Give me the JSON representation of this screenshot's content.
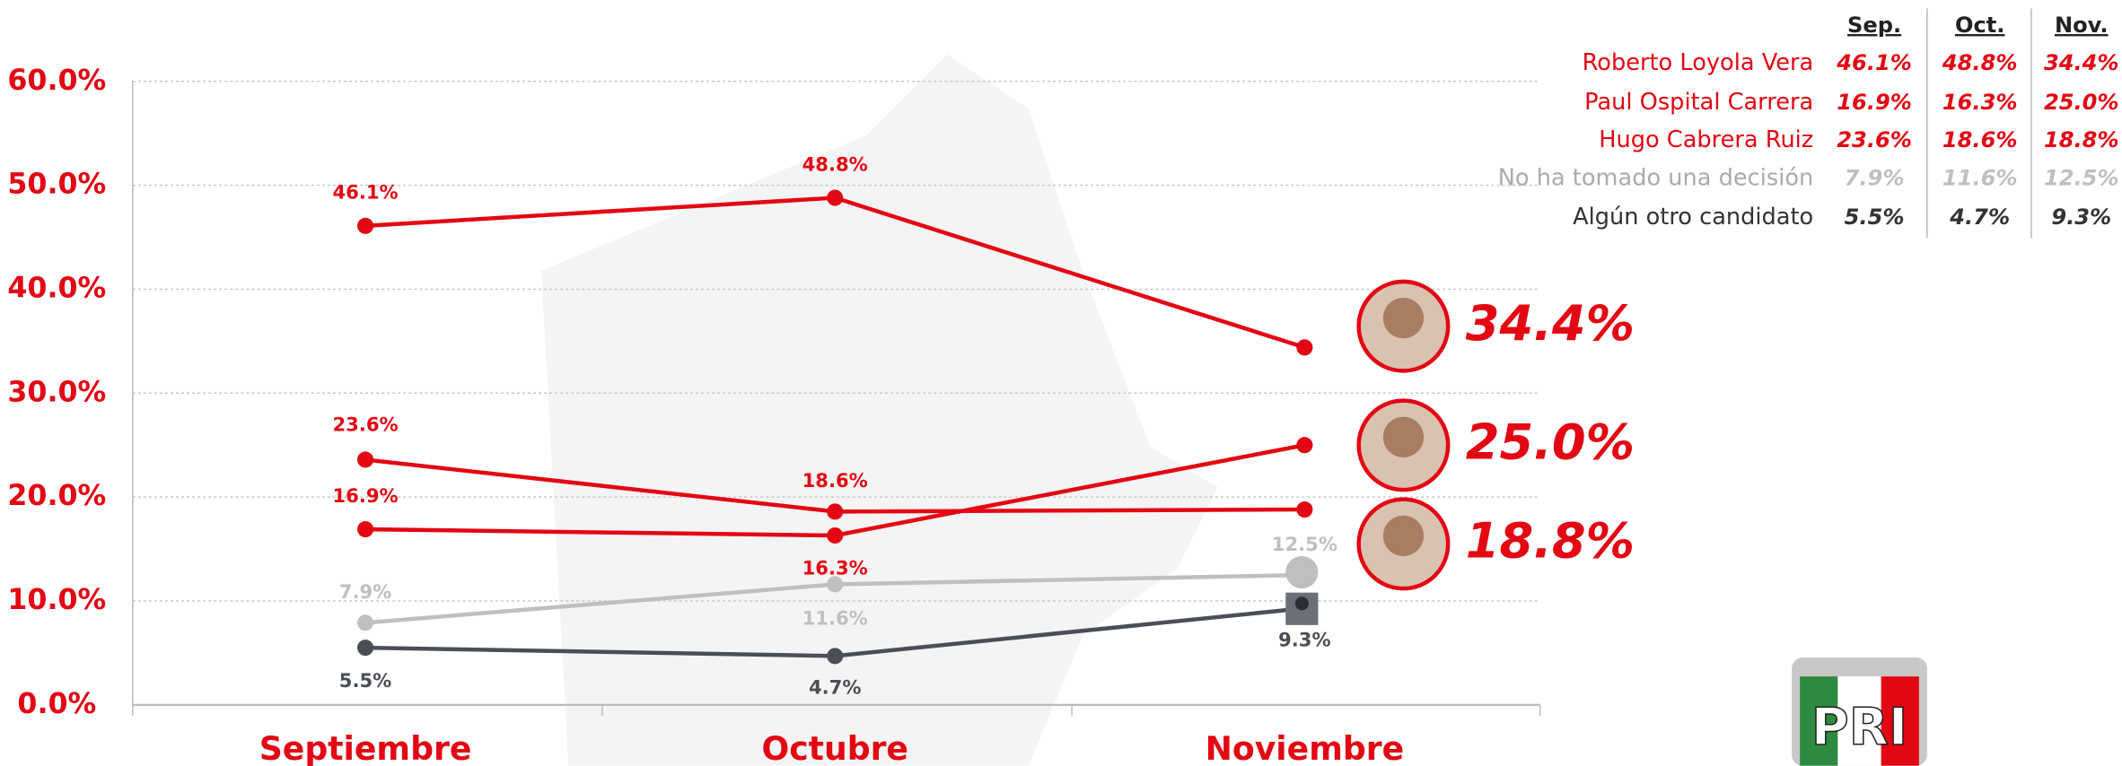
{
  "chart_data": {
    "type": "line",
    "categories": [
      "Septiembre",
      "Octubre",
      "Noviembre"
    ],
    "ylim": [
      0,
      60
    ],
    "yticks": [
      {
        "value": 0,
        "label": "0.0%"
      },
      {
        "value": 10,
        "label": "10.0%"
      },
      {
        "value": 20,
        "label": "20.0%"
      },
      {
        "value": 30,
        "label": "30.0%"
      },
      {
        "value": 40,
        "label": "40.0%"
      },
      {
        "value": 50,
        "label": "50.0%"
      },
      {
        "value": 60,
        "label": "60.0%"
      }
    ],
    "grid": true,
    "series": [
      {
        "name": "Roberto Loyola Vera",
        "color": "#e30613",
        "values": [
          46.1,
          48.8,
          34.4
        ],
        "value_labels": [
          "46.1%",
          "48.8%",
          "34.4%"
        ]
      },
      {
        "name": "Paul Ospital Carrera",
        "color": "#e30613",
        "values": [
          16.9,
          16.3,
          25.0
        ],
        "value_labels": [
          "16.9%",
          "16.3%",
          "25.0%"
        ]
      },
      {
        "name": "Hugo Cabrera Ruiz",
        "color": "#e30613",
        "values": [
          23.6,
          18.6,
          18.8
        ],
        "value_labels": [
          "23.6%",
          "18.6%",
          "18.8%"
        ]
      },
      {
        "name": "No ha tomado una decisión",
        "color": "#bfbfbf",
        "values": [
          7.9,
          11.6,
          12.5
        ],
        "value_labels": [
          "7.9%",
          "11.6%",
          "12.5%"
        ]
      },
      {
        "name": "Algún otro candidato",
        "color": "#4a4e57",
        "values": [
          5.5,
          4.7,
          9.3
        ],
        "value_labels": [
          "5.5%",
          "4.7%",
          "9.3%"
        ]
      }
    ],
    "table_columns": [
      "Sep.",
      "Oct.",
      "Nov."
    ],
    "logo": "PRI"
  }
}
